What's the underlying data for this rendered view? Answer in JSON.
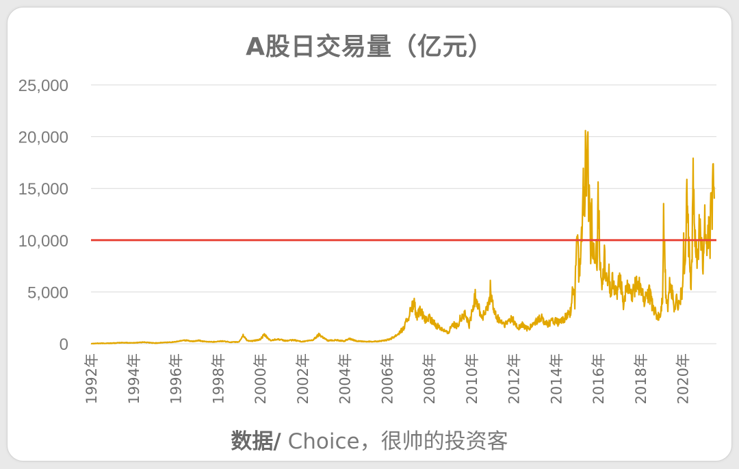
{
  "chart_data": {
    "type": "line",
    "title": "A股日交易量（亿元）",
    "source_prefix": "数据/",
    "source_rest": " Choice，很帅的投资客",
    "ylim": [
      0,
      25000
    ],
    "yticks": [
      "25,000",
      "20,000",
      "15,000",
      "10,000",
      "5,000",
      "0"
    ],
    "ytick_values": [
      25000,
      20000,
      15000,
      10000,
      5000,
      0
    ],
    "xticks": [
      "1992年",
      "1994年",
      "1996年",
      "1998年",
      "2000年",
      "2002年",
      "2004年",
      "2006年",
      "2008年",
      "2010年",
      "2012年",
      "2014年",
      "2016年",
      "2018年",
      "2020年"
    ],
    "xtick_years": [
      1992,
      1994,
      1996,
      1998,
      2000,
      2002,
      2004,
      2006,
      2008,
      2010,
      2012,
      2014,
      2016,
      2018,
      2020
    ],
    "xlim_years": [
      1992,
      2021.6
    ],
    "grid": true,
    "reference_line": {
      "value": 10000,
      "color": "#e8463a"
    },
    "series": [
      {
        "color": "#e2a700",
        "x": [
          1992.0,
          1993.0,
          1993.5,
          1994.0,
          1994.5,
          1995.0,
          1995.5,
          1996.0,
          1996.4,
          1996.8,
          1997.1,
          1997.4,
          1997.8,
          1998.2,
          1998.6,
          1999.0,
          1999.2,
          1999.4,
          1999.6,
          2000.0,
          2000.2,
          2000.5,
          2000.8,
          2001.2,
          2001.6,
          2002.0,
          2002.5,
          2002.8,
          2003.2,
          2003.6,
          2004.0,
          2004.2,
          2004.6,
          2005.0,
          2005.5,
          2005.9,
          2006.2,
          2006.5,
          2006.8,
          2007.1,
          2007.3,
          2007.4,
          2007.6,
          2007.8,
          2008.0,
          2008.3,
          2008.6,
          2008.9,
          2009.1,
          2009.3,
          2009.5,
          2009.7,
          2009.9,
          2010.2,
          2010.5,
          2010.8,
          2010.9,
          2011.1,
          2011.3,
          2011.6,
          2011.9,
          2012.2,
          2012.4,
          2012.7,
          2013.0,
          2013.3,
          2013.6,
          2013.9,
          2014.2,
          2014.5,
          2014.7,
          2014.8,
          2014.9,
          2015.0,
          2015.1,
          2015.2,
          2015.3,
          2015.35,
          2015.4,
          2015.45,
          2015.5,
          2015.55,
          2015.6,
          2015.65,
          2015.7,
          2015.75,
          2015.8,
          2015.85,
          2015.9,
          2015.95,
          2016.0,
          2016.05,
          2016.1,
          2016.2,
          2016.3,
          2016.4,
          2016.5,
          2016.6,
          2016.7,
          2016.8,
          2016.9,
          2017.0,
          2017.2,
          2017.4,
          2017.6,
          2017.8,
          2018.0,
          2018.2,
          2018.4,
          2018.6,
          2018.8,
          2018.95,
          2019.05,
          2019.1,
          2019.15,
          2019.2,
          2019.3,
          2019.4,
          2019.5,
          2019.6,
          2019.7,
          2019.8,
          2019.9,
          2020.0,
          2020.05,
          2020.1,
          2020.2,
          2020.3,
          2020.4,
          2020.45,
          2020.5,
          2020.55,
          2020.6,
          2020.7,
          2020.8,
          2020.9,
          2021.0,
          2021.05,
          2021.1,
          2021.15,
          2021.2,
          2021.25,
          2021.3,
          2021.35,
          2021.4,
          2021.45,
          2021.5
        ],
        "values": [
          20,
          50,
          100,
          80,
          150,
          60,
          120,
          180,
          350,
          220,
          300,
          200,
          180,
          250,
          150,
          170,
          800,
          300,
          250,
          400,
          850,
          300,
          450,
          280,
          350,
          200,
          350,
          900,
          300,
          350,
          250,
          500,
          250,
          200,
          220,
          300,
          500,
          900,
          1500,
          3000,
          4000,
          2500,
          3200,
          2200,
          2500,
          1800,
          1500,
          1000,
          2000,
          1600,
          2500,
          2800,
          1800,
          4600,
          2500,
          3500,
          5200,
          2800,
          2300,
          1800,
          2500,
          1500,
          1800,
          1400,
          2000,
          2500,
          1900,
          2200,
          2000,
          2600,
          3200,
          5000,
          4000,
          12500,
          6000,
          10000,
          15000,
          13000,
          18000,
          16500,
          24000,
          14000,
          13000,
          9000,
          12000,
          8000,
          10000,
          7000,
          10000,
          8000,
          13500,
          11000,
          7000,
          5500,
          8500,
          6000,
          7000,
          4500,
          6500,
          5000,
          4500,
          7000,
          4000,
          5500,
          4500,
          6000,
          5500,
          4000,
          5000,
          3500,
          2500,
          2800,
          4500,
          11700,
          9000,
          5000,
          3500,
          6000,
          5000,
          3500,
          4500,
          3500,
          4500,
          5000,
          9500,
          6500,
          14000,
          9000,
          5500,
          8500,
          17300,
          11000,
          9500,
          8500,
          11000,
          9000,
          7500,
          12500,
          9500,
          8000,
          10500,
          12500,
          9500,
          15000,
          12000,
          17000,
          14000
        ]
      }
    ]
  }
}
